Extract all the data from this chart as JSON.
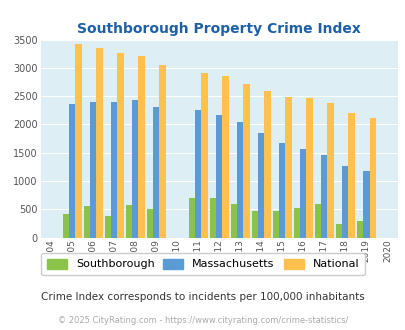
{
  "title": "Southborough Property Crime Index",
  "subtitle": "Crime Index corresponds to incidents per 100,000 inhabitants",
  "footer": "© 2025 CityRating.com - https://www.cityrating.com/crime-statistics/",
  "years": [
    2004,
    2005,
    2006,
    2007,
    2008,
    2009,
    2010,
    2011,
    2012,
    2013,
    2014,
    2015,
    2016,
    2017,
    2018,
    2019,
    2020
  ],
  "southborough": [
    0,
    420,
    560,
    380,
    570,
    510,
    0,
    700,
    700,
    590,
    470,
    470,
    530,
    590,
    240,
    295,
    0
  ],
  "massachusetts": [
    0,
    2370,
    2400,
    2400,
    2440,
    2310,
    0,
    2260,
    2160,
    2050,
    1850,
    1680,
    1560,
    1460,
    1260,
    1175,
    0
  ],
  "national": [
    0,
    3430,
    3350,
    3270,
    3210,
    3050,
    0,
    2910,
    2855,
    2720,
    2600,
    2490,
    2460,
    2380,
    2200,
    2120,
    0
  ],
  "southborough_color": "#8bc34a",
  "massachusetts_color": "#5b9bd5",
  "national_color": "#ffc04c",
  "bg_color": "#ddeef5",
  "title_color": "#1f5fa6",
  "subtitle_color": "#333333",
  "footer_color": "#aaaaaa",
  "ylim": [
    0,
    3500
  ],
  "yticks": [
    0,
    500,
    1000,
    1500,
    2000,
    2500,
    3000,
    3500
  ]
}
